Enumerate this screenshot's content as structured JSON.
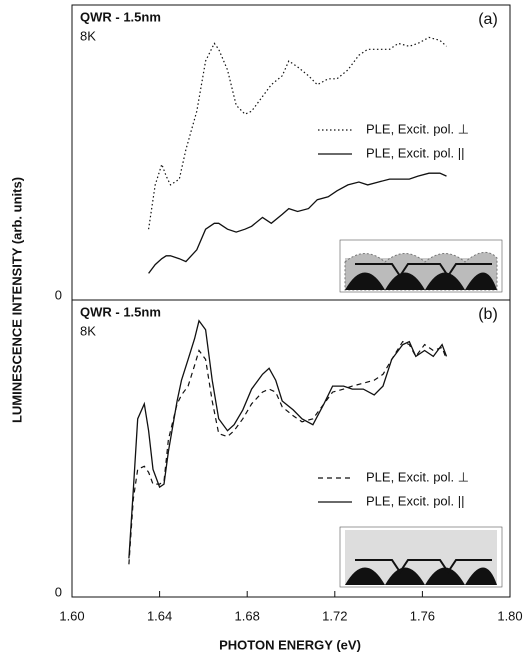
{
  "y_label": "LUMINESCENCE INTENSITY (arb. units)",
  "x_label": "PHOTON ENERGY (eV)",
  "chart_data": [
    {
      "type": "line",
      "title": "QWR - 1.5nm",
      "subtitle": "8K",
      "panel_label": "(a)",
      "xlim": [
        1.6,
        1.8
      ],
      "ylim": [
        0,
        1
      ],
      "yticks": [
        0
      ],
      "x": [
        1.635,
        1.638,
        1.641,
        1.643,
        1.645,
        1.649,
        1.652,
        1.657,
        1.661,
        1.665,
        1.667,
        1.671,
        1.675,
        1.679,
        1.682,
        1.687,
        1.691,
        1.696,
        1.699,
        1.703,
        1.708,
        1.712,
        1.717,
        1.721,
        1.726,
        1.731,
        1.735,
        1.74,
        1.745,
        1.749,
        1.754,
        1.758,
        1.763,
        1.768,
        1.771
      ],
      "series": [
        {
          "name": "PLE, Excit. pol. ⊥",
          "color": "#111111",
          "linestyle": "dotted",
          "values": [
            0.24,
            0.39,
            0.46,
            0.42,
            0.39,
            0.41,
            0.51,
            0.64,
            0.81,
            0.87,
            0.85,
            0.78,
            0.66,
            0.63,
            0.64,
            0.69,
            0.73,
            0.76,
            0.81,
            0.79,
            0.76,
            0.73,
            0.75,
            0.75,
            0.78,
            0.83,
            0.85,
            0.85,
            0.85,
            0.87,
            0.86,
            0.87,
            0.89,
            0.88,
            0.86
          ]
        },
        {
          "name": "PLE, Excit. pol. ||",
          "color": "#111111",
          "linestyle": "solid",
          "values": [
            0.09,
            0.12,
            0.14,
            0.15,
            0.15,
            0.14,
            0.13,
            0.17,
            0.24,
            0.26,
            0.26,
            0.24,
            0.23,
            0.24,
            0.25,
            0.28,
            0.26,
            0.29,
            0.31,
            0.3,
            0.31,
            0.34,
            0.35,
            0.37,
            0.39,
            0.4,
            0.39,
            0.4,
            0.41,
            0.41,
            0.41,
            0.42,
            0.43,
            0.43,
            0.42
          ]
        }
      ]
    },
    {
      "type": "line",
      "title": "QWR - 1.5nm",
      "subtitle": "8K",
      "panel_label": "(b)",
      "xlim": [
        1.6,
        1.8
      ],
      "ylim": [
        0,
        1
      ],
      "yticks": [
        0
      ],
      "xticks": [
        {
          "value": 1.6,
          "label": "1.60"
        },
        1.64,
        1.68,
        1.72,
        1.76,
        {
          "value": 1.8,
          "label": "1.80"
        }
      ],
      "x": [
        1.626,
        1.628,
        1.63,
        1.633,
        1.635,
        1.637,
        1.64,
        1.642,
        1.644,
        1.648,
        1.65,
        1.653,
        1.656,
        1.658,
        1.661,
        1.664,
        1.667,
        1.671,
        1.674,
        1.678,
        1.682,
        1.687,
        1.69,
        1.693,
        1.696,
        1.701,
        1.705,
        1.71,
        1.715,
        1.719,
        1.724,
        1.728,
        1.733,
        1.738,
        1.742,
        1.746,
        1.751,
        1.754,
        1.757,
        1.761,
        1.765,
        1.769,
        1.771
      ],
      "series": [
        {
          "name": "PLE, Excit. pol. ⊥",
          "color": "#111111",
          "linestyle": "dashed",
          "values": [
            0.11,
            0.33,
            0.43,
            0.44,
            0.42,
            0.38,
            0.38,
            0.39,
            0.53,
            0.65,
            0.68,
            0.71,
            0.78,
            0.83,
            0.8,
            0.66,
            0.55,
            0.54,
            0.56,
            0.6,
            0.65,
            0.69,
            0.7,
            0.69,
            0.64,
            0.61,
            0.59,
            0.6,
            0.65,
            0.69,
            0.7,
            0.71,
            0.72,
            0.73,
            0.75,
            0.8,
            0.86,
            0.85,
            0.81,
            0.85,
            0.83,
            0.84,
            0.8
          ]
        },
        {
          "name": "PLE, Excit. pol. ||",
          "color": "#111111",
          "linestyle": "solid",
          "values": [
            0.13,
            0.36,
            0.6,
            0.65,
            0.56,
            0.43,
            0.37,
            0.38,
            0.49,
            0.66,
            0.73,
            0.8,
            0.87,
            0.93,
            0.9,
            0.73,
            0.6,
            0.56,
            0.58,
            0.63,
            0.7,
            0.75,
            0.77,
            0.73,
            0.66,
            0.63,
            0.6,
            0.58,
            0.65,
            0.71,
            0.71,
            0.7,
            0.7,
            0.68,
            0.71,
            0.8,
            0.85,
            0.86,
            0.81,
            0.83,
            0.81,
            0.85,
            0.81
          ]
        }
      ]
    }
  ]
}
